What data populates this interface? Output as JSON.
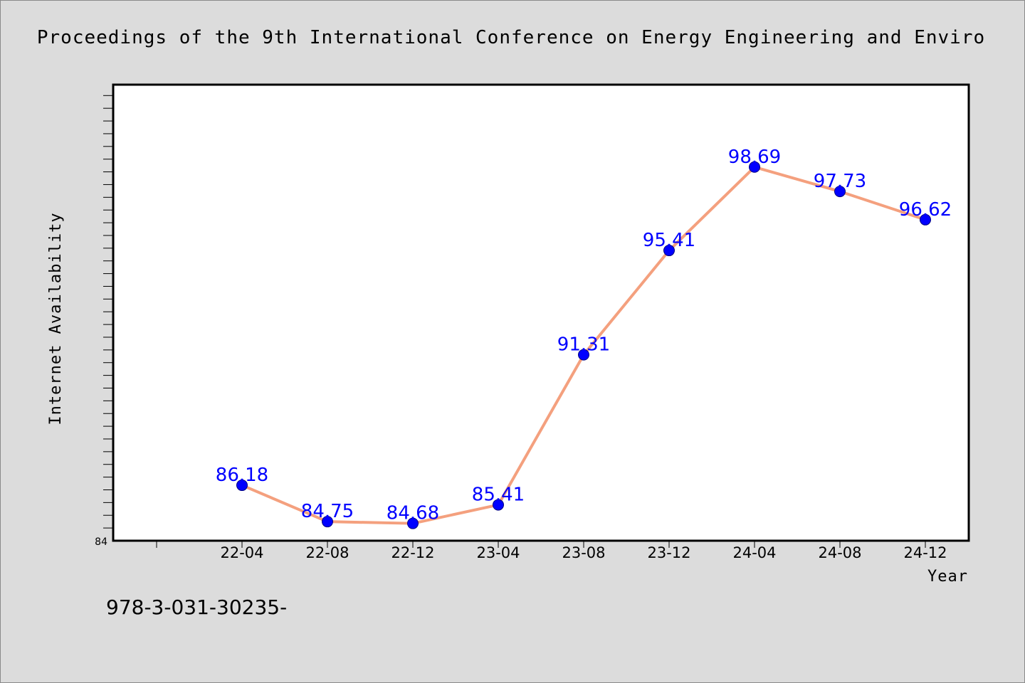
{
  "chart_data": {
    "type": "line",
    "title": "Proceedings of the 9th International Conference on Energy Engineering and Enviro",
    "xlabel": "Year",
    "ylabel": "Internet Availability",
    "categories": [
      "22-04",
      "22-08",
      "22-12",
      "23-04",
      "23-08",
      "23-12",
      "24-04",
      "24-08",
      "24-12"
    ],
    "series": [
      {
        "values": [
          86.18,
          84.75,
          84.68,
          85.41,
          91.31,
          95.41,
          98.69,
          97.73,
          96.62
        ],
        "data_labels": [
          "86.18",
          "84.75",
          "84.68",
          "85.41",
          "91.31",
          "95.41",
          "98.69",
          "97.73",
          "96.62"
        ]
      }
    ],
    "ylim": [
      84,
      101.9
    ],
    "ytick_label": "84",
    "grid": false,
    "legend": "none",
    "colors": {
      "line": "#f4a07e",
      "marker": "#0000ff",
      "marker_edge": "#000080",
      "data_label": "#0000ff",
      "plot_background": "#ffffff",
      "page_background": "#dcdcdc"
    }
  },
  "footer": {
    "isbn": "978-3-031-30235-"
  }
}
